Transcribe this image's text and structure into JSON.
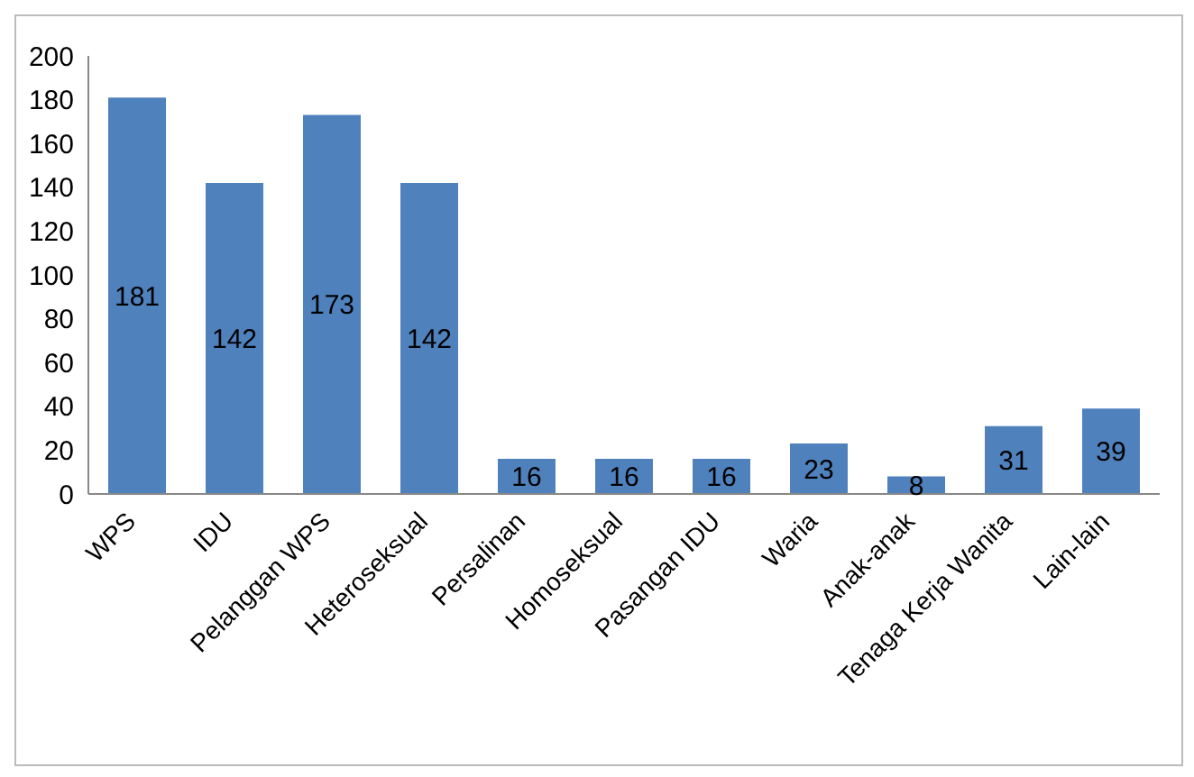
{
  "chart_data": {
    "type": "bar",
    "categories": [
      "WPS",
      "IDU",
      "Pelanggan WPS",
      "Heteroseksual",
      "Persalinan",
      "Homoseksual",
      "Pasangan IDU",
      "Waria",
      "Anak-anak",
      "Tenaga Kerja Wanita",
      "Lain-lain"
    ],
    "values": [
      181,
      142,
      173,
      142,
      16,
      16,
      16,
      23,
      8,
      31,
      39
    ],
    "color": "#4f81bd",
    "ylim": [
      0,
      200
    ],
    "yticks": [
      0,
      20,
      40,
      60,
      80,
      100,
      120,
      140,
      160,
      180,
      200
    ],
    "grid": false,
    "data_labels": true
  }
}
